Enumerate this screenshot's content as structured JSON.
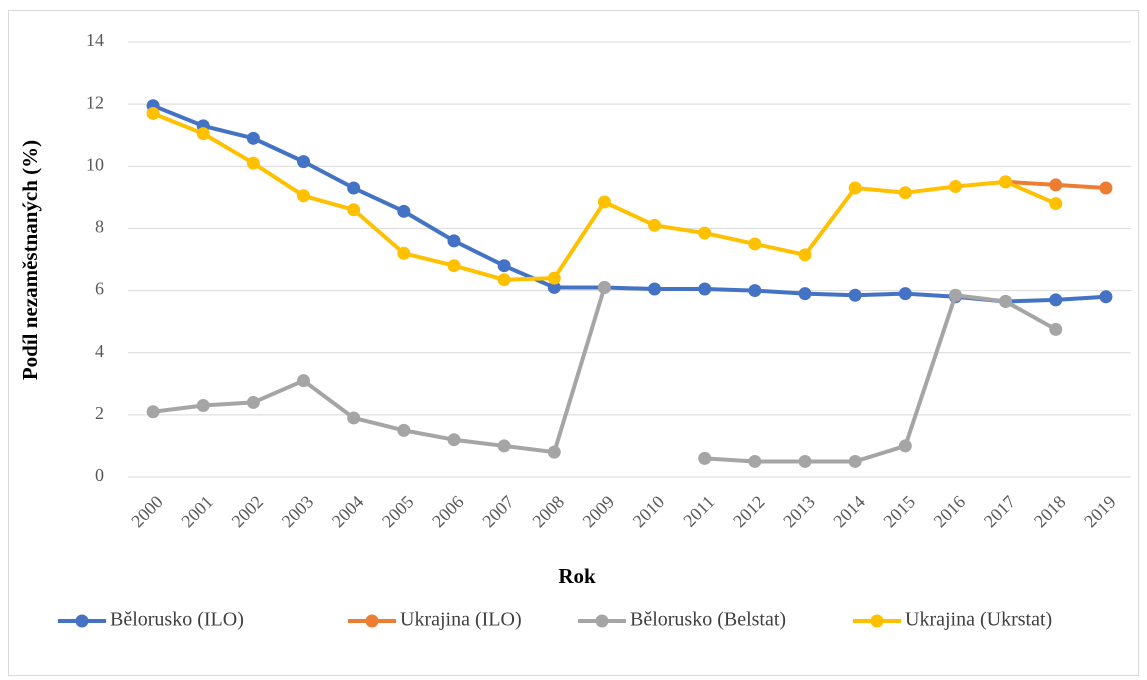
{
  "chart_data": {
    "type": "line",
    "x_label": "Rok",
    "y_label": "Podíl nezaměstnaných (%)",
    "categories": [
      "2000",
      "2001",
      "2002",
      "2003",
      "2004",
      "2005",
      "2006",
      "2007",
      "2008",
      "2009",
      "2010",
      "2011",
      "2012",
      "2013",
      "2014",
      "2015",
      "2016",
      "2017",
      "2018",
      "2019"
    ],
    "series": [
      {
        "name": "Bělorusko (ILO)",
        "color": "#4472c4",
        "values": [
          11.95,
          11.3,
          10.9,
          10.15,
          9.3,
          8.55,
          7.6,
          6.8,
          6.1,
          6.1,
          6.05,
          6.05,
          6.0,
          5.9,
          5.85,
          5.9,
          5.8,
          5.65,
          5.7,
          5.8
        ]
      },
      {
        "name": "Ukrajina (ILO)",
        "color": "#ed7d31",
        "values": [
          null,
          null,
          null,
          null,
          null,
          null,
          null,
          null,
          null,
          null,
          null,
          null,
          null,
          null,
          null,
          null,
          null,
          9.5,
          9.4,
          9.3
        ]
      },
      {
        "name": "Bělorusko (Belstat)",
        "color": "#a5a5a5",
        "values": [
          2.1,
          2.3,
          2.4,
          3.1,
          1.9,
          1.5,
          1.2,
          1.0,
          0.8,
          6.1,
          null,
          0.6,
          0.5,
          0.5,
          0.5,
          1.0,
          5.85,
          5.65,
          4.75,
          null
        ]
      },
      {
        "name": "Ukrajina (Ukrstat)",
        "color": "#ffc000",
        "values": [
          11.7,
          11.05,
          10.1,
          9.05,
          8.6,
          7.2,
          6.8,
          6.35,
          6.4,
          8.85,
          8.1,
          7.85,
          7.5,
          7.15,
          9.3,
          9.15,
          9.35,
          9.5,
          8.8,
          null
        ]
      }
    ],
    "ylim": [
      0,
      14
    ],
    "yticks": [
      0,
      2,
      4,
      6,
      8,
      10,
      12,
      14
    ],
    "grid": true,
    "legend": "bottom"
  }
}
